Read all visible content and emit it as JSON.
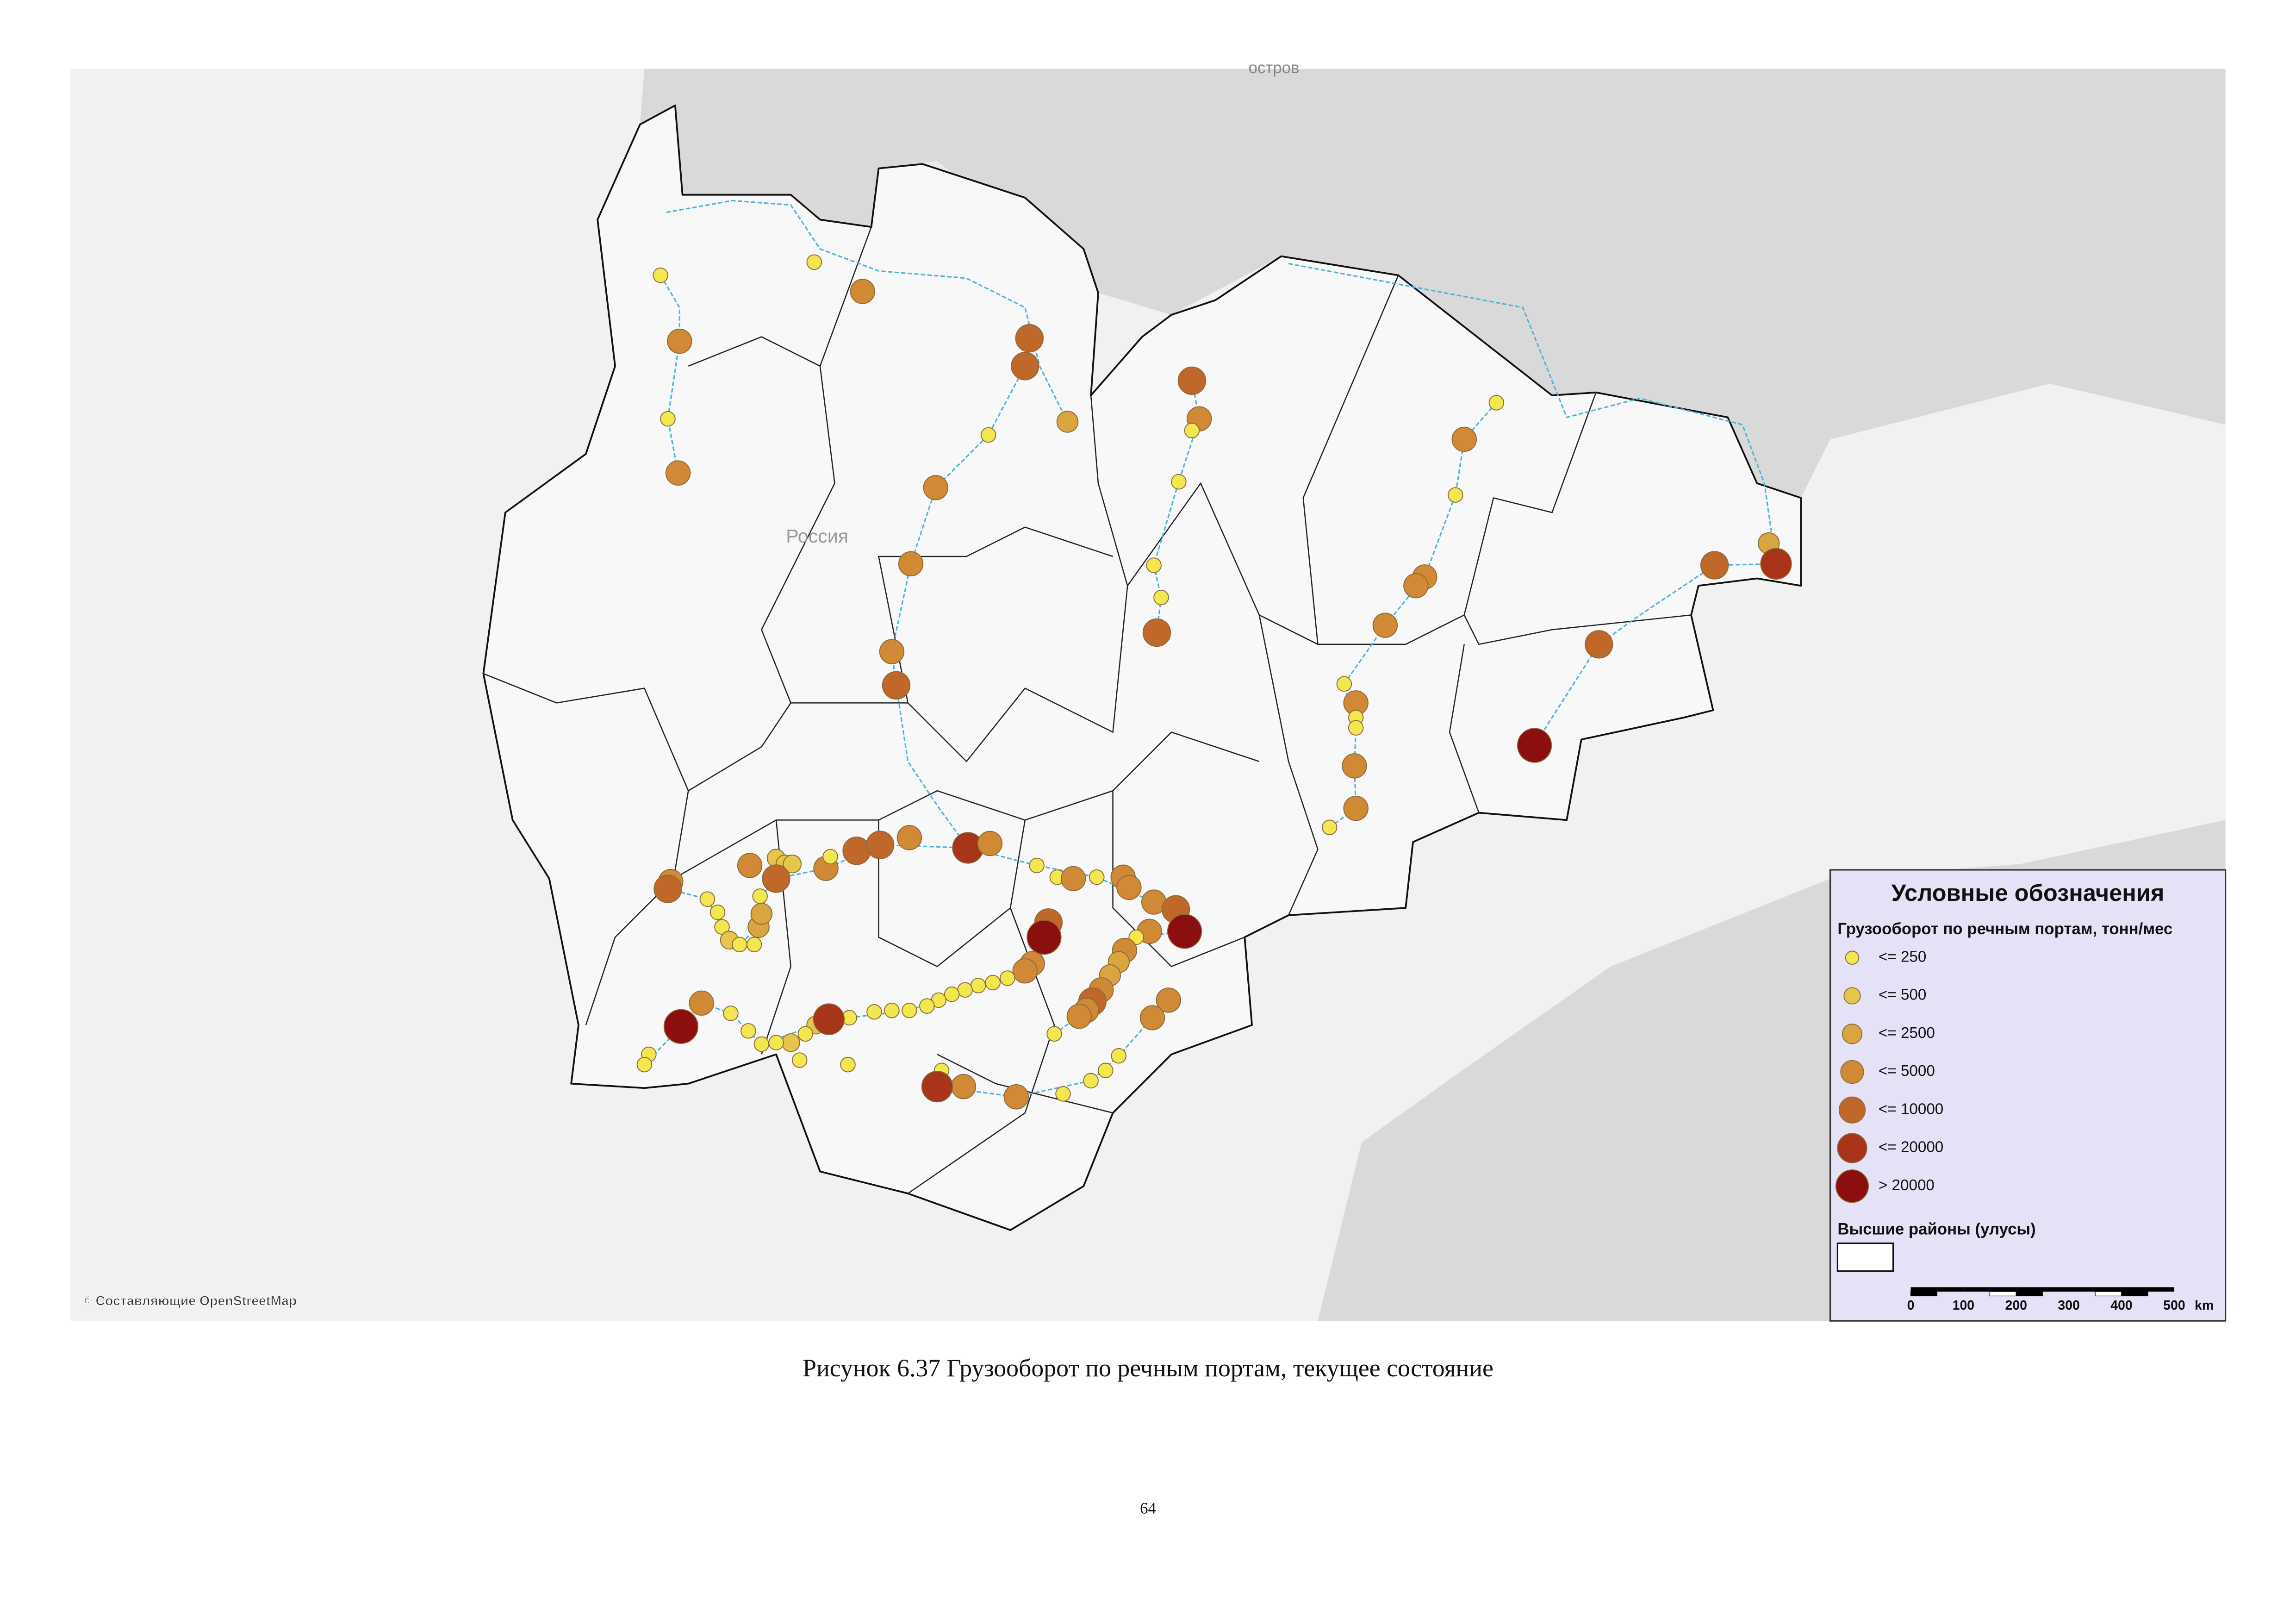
{
  "map": {
    "place_labels": [
      "Россия",
      "остров"
    ],
    "attribution": "© Составляющие OpenStreetMap",
    "legend": {
      "title": "Условные обозначения",
      "subtitle": "Грузооборот по речным портам, тонн/мес",
      "classes": [
        {
          "label": "<= 250",
          "color": "#f3e74f"
        },
        {
          "label": "<= 500",
          "color": "#e6c64a"
        },
        {
          "label": "<= 2500",
          "color": "#d9a541"
        },
        {
          "label": "<= 5000",
          "color": "#d08a36"
        },
        {
          "label": "<= 10000",
          "color": "#c0682a"
        },
        {
          "label": "<= 20000",
          "color": "#a8341a"
        },
        {
          "label": "> 20000",
          "color": "#8b0f0f"
        }
      ],
      "districts_label": "Высшие районы (улусы)",
      "scale": {
        "ticks": [
          0,
          100,
          200,
          300,
          400,
          500
        ],
        "unit": "km"
      }
    }
  },
  "caption": "Рисунок 6.37 Грузооборот по речным портам, текущее состояние",
  "page_number": "64"
}
